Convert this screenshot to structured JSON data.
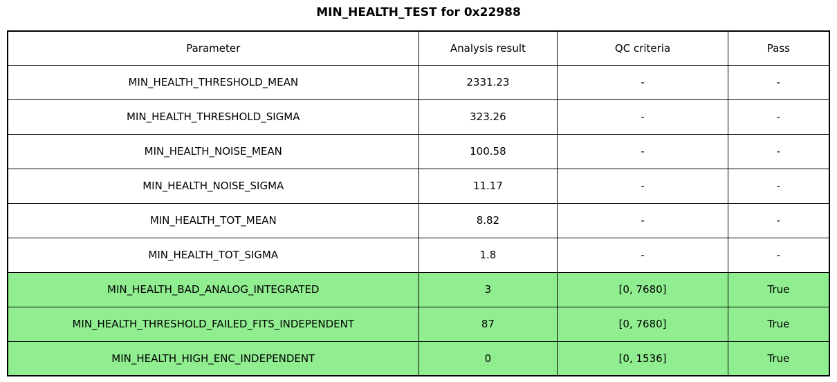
{
  "chart_data": {
    "type": "table",
    "title": "MIN_HEALTH_TEST for 0x22988",
    "columns": [
      "Parameter",
      "Analysis result",
      "QC criteria",
      "Pass"
    ],
    "rows": [
      {
        "parameter": "MIN_HEALTH_THRESHOLD_MEAN",
        "analysis_result": "2331.23",
        "qc_criteria": "-",
        "pass": "-",
        "highlighted": false
      },
      {
        "parameter": "MIN_HEALTH_THRESHOLD_SIGMA",
        "analysis_result": "323.26",
        "qc_criteria": "-",
        "pass": "-",
        "highlighted": false
      },
      {
        "parameter": "MIN_HEALTH_NOISE_MEAN",
        "analysis_result": "100.58",
        "qc_criteria": "-",
        "pass": "-",
        "highlighted": false
      },
      {
        "parameter": "MIN_HEALTH_NOISE_SIGMA",
        "analysis_result": "11.17",
        "qc_criteria": "-",
        "pass": "-",
        "highlighted": false
      },
      {
        "parameter": "MIN_HEALTH_TOT_MEAN",
        "analysis_result": "8.82",
        "qc_criteria": "-",
        "pass": "-",
        "highlighted": false
      },
      {
        "parameter": "MIN_HEALTH_TOT_SIGMA",
        "analysis_result": "1.8",
        "qc_criteria": "-",
        "pass": "-",
        "highlighted": false
      },
      {
        "parameter": "MIN_HEALTH_BAD_ANALOG_INTEGRATED",
        "analysis_result": "3",
        "qc_criteria": "[0, 7680]",
        "pass": "True",
        "highlighted": true
      },
      {
        "parameter": "MIN_HEALTH_THRESHOLD_FAILED_FITS_INDEPENDENT",
        "analysis_result": "87",
        "qc_criteria": "[0, 7680]",
        "pass": "True",
        "highlighted": true
      },
      {
        "parameter": "MIN_HEALTH_HIGH_ENC_INDEPENDENT",
        "analysis_result": "0",
        "qc_criteria": "[0, 1536]",
        "pass": "True",
        "highlighted": true
      }
    ],
    "colors": {
      "highlight_green": "#90EE90",
      "border": "#000000",
      "background": "#FFFFFF",
      "text": "#000000"
    },
    "layout": {
      "legend": "none",
      "grid": "full-cell-borders",
      "highlight_meaning": "row passed QC criteria"
    }
  }
}
